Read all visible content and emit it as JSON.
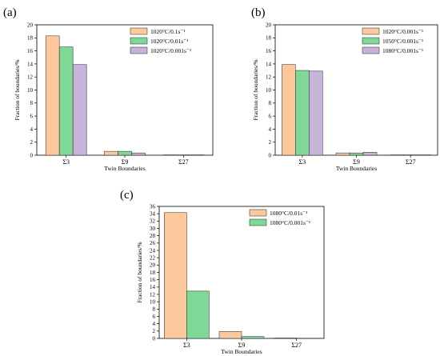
{
  "colors": {
    "orange": "#FDC89B",
    "green": "#7FD798",
    "purple": "#C8B3DB",
    "edge": "#222222"
  },
  "chart_data": [
    {
      "panel": "(a)",
      "type": "bar",
      "categories": [
        "Σ3",
        "Σ9",
        "Σ27"
      ],
      "series": [
        {
          "name": "1020°C/0.1s⁻¹",
          "color": "orange",
          "values": [
            18.3,
            0.6,
            0.05
          ]
        },
        {
          "name": "1020°C/0.01s⁻¹",
          "color": "green",
          "values": [
            16.6,
            0.6,
            0.05
          ]
        },
        {
          "name": "1020°C/0.001s⁻¹",
          "color": "purple",
          "values": [
            13.9,
            0.35,
            0.05
          ]
        }
      ],
      "xlabel": "Twin Boundaries",
      "ylabel": "Fraction of boundaries/%",
      "ylim": [
        0,
        20
      ],
      "yticks": [
        0,
        2,
        4,
        6,
        8,
        10,
        12,
        14,
        16,
        18,
        20
      ],
      "legend": "top-right",
      "grid": false
    },
    {
      "panel": "(b)",
      "type": "bar",
      "categories": [
        "Σ3",
        "Σ9",
        "Σ27"
      ],
      "series": [
        {
          "name": "1020°C/0.001s⁻¹",
          "color": "orange",
          "values": [
            13.9,
            0.35,
            0.05
          ]
        },
        {
          "name": "1050°C/0.001s⁻¹",
          "color": "green",
          "values": [
            13.0,
            0.35,
            0.05
          ]
        },
        {
          "name": "1080°C/0.001s⁻¹",
          "color": "purple",
          "values": [
            12.9,
            0.45,
            0.05
          ]
        }
      ],
      "xlabel": "Twin Boundaries",
      "ylabel": "Fraction of boundaries/%",
      "ylim": [
        0,
        20
      ],
      "yticks": [
        0,
        2,
        4,
        6,
        8,
        10,
        12,
        14,
        16,
        18,
        20
      ],
      "legend": "top-right",
      "grid": false
    },
    {
      "panel": "(c)",
      "type": "bar",
      "categories": [
        "Σ3",
        "Σ9",
        "Σ27"
      ],
      "series": [
        {
          "name": "1080°C/0.01s⁻¹",
          "color": "orange",
          "values": [
            34.3,
            1.9,
            0.1
          ]
        },
        {
          "name": "1080°C/0.001s⁻¹",
          "color": "green",
          "values": [
            12.9,
            0.5,
            0.05
          ]
        }
      ],
      "xlabel": "Twin Boundaries",
      "ylabel": "Fraction of boundaries/%",
      "ylim": [
        0,
        36
      ],
      "yticks": [
        0,
        2,
        4,
        6,
        8,
        10,
        12,
        14,
        16,
        18,
        20,
        22,
        24,
        26,
        28,
        30,
        32,
        34,
        36
      ],
      "legend": "top-right",
      "grid": false
    }
  ]
}
